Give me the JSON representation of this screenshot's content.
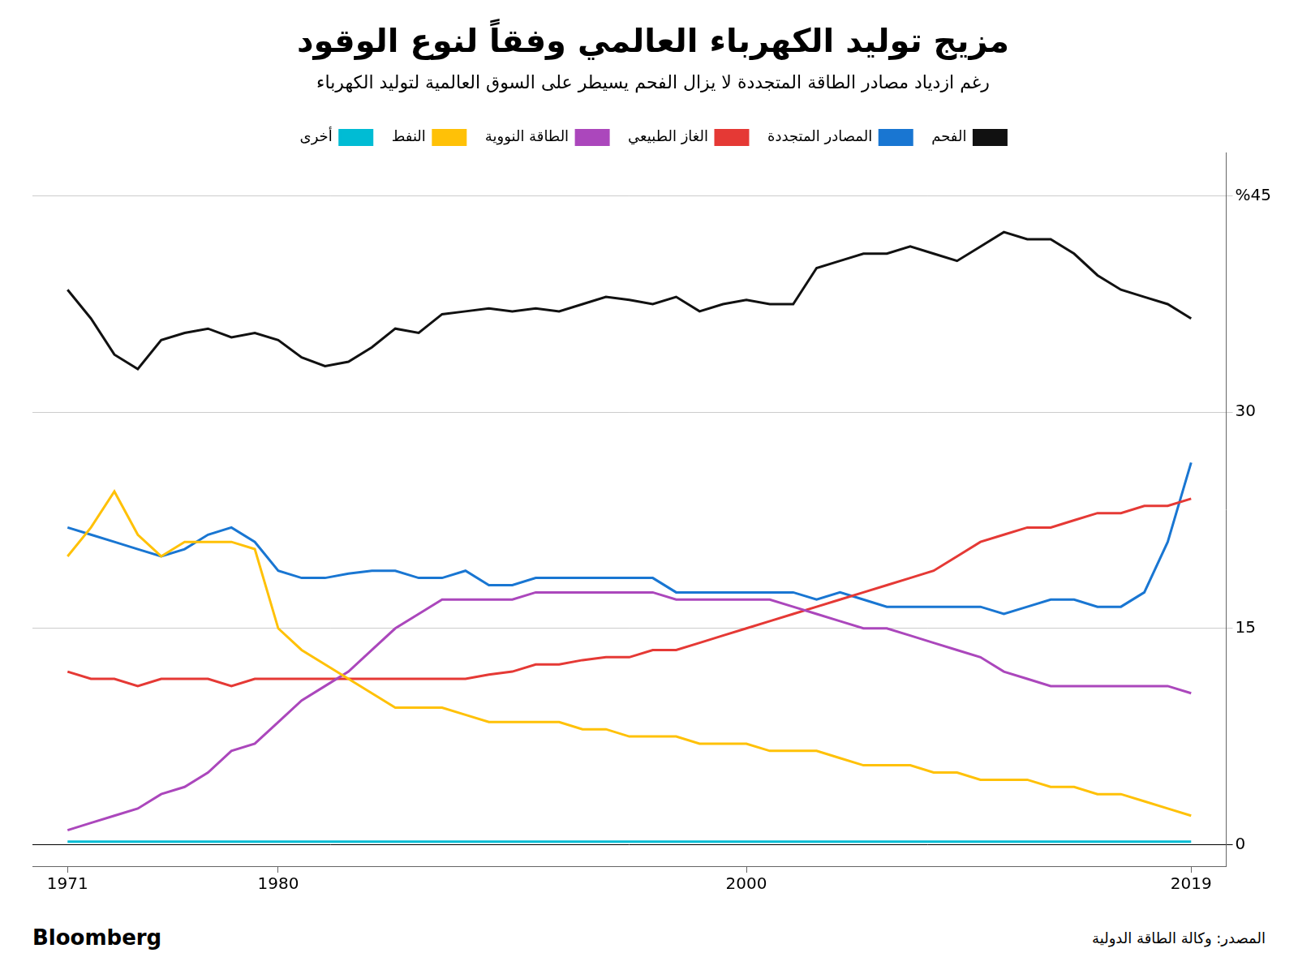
{
  "chart_data": {
    "type": "line",
    "title": "مزيج توليد الكهرباء العالمي وفقاً لنوع الوقود",
    "subtitle": "رغم ازدياد مصادر الطاقة المتجددة لا يزال الفحم يسيطر على السوق العالمية لتوليد الكهرباء",
    "annotations": [
      "Bloomberg",
      "المصدر: وكالة الطاقة الدولية"
    ],
    "x": [
      1971,
      1972,
      1973,
      1974,
      1975,
      1976,
      1977,
      1978,
      1979,
      1980,
      1981,
      1982,
      1983,
      1984,
      1985,
      1986,
      1987,
      1988,
      1989,
      1990,
      1991,
      1992,
      1993,
      1994,
      1995,
      1996,
      1997,
      1998,
      1999,
      2000,
      2001,
      2002,
      2003,
      2004,
      2005,
      2006,
      2007,
      2008,
      2009,
      2010,
      2011,
      2012,
      2013,
      2014,
      2015,
      2016,
      2017,
      2018,
      2019
    ],
    "series": [
      {
        "name": "أخرى",
        "color": "#00BCD4",
        "values": [
          0.2,
          0.2,
          0.2,
          0.2,
          0.2,
          0.2,
          0.2,
          0.2,
          0.2,
          0.2,
          0.2,
          0.2,
          0.2,
          0.2,
          0.2,
          0.2,
          0.2,
          0.2,
          0.2,
          0.2,
          0.2,
          0.2,
          0.2,
          0.2,
          0.2,
          0.2,
          0.2,
          0.2,
          0.2,
          0.2,
          0.2,
          0.2,
          0.2,
          0.2,
          0.2,
          0.2,
          0.2,
          0.2,
          0.2,
          0.2,
          0.2,
          0.2,
          0.2,
          0.2,
          0.2,
          0.2,
          0.2,
          0.2,
          0.2
        ]
      },
      {
        "name": "النفط",
        "color": "#FFC107",
        "values": [
          20.0,
          22.0,
          24.5,
          21.5,
          20.0,
          21.0,
          21.0,
          21.0,
          20.5,
          15.0,
          13.5,
          12.5,
          11.5,
          10.5,
          9.5,
          9.5,
          9.5,
          9.0,
          8.5,
          8.5,
          8.5,
          8.5,
          8.0,
          8.0,
          7.5,
          7.5,
          7.5,
          7.0,
          7.0,
          7.0,
          6.5,
          6.5,
          6.5,
          6.0,
          5.5,
          5.5,
          5.5,
          5.0,
          5.0,
          4.5,
          4.5,
          4.5,
          4.0,
          4.0,
          3.5,
          3.5,
          3.0,
          2.5,
          2.0
        ]
      },
      {
        "name": "الطاقة النووية",
        "color": "#AB47BC",
        "values": [
          1.0,
          1.5,
          2.0,
          2.5,
          3.5,
          4.0,
          5.0,
          6.5,
          7.0,
          8.5,
          10.0,
          11.0,
          12.0,
          13.5,
          15.0,
          16.0,
          17.0,
          17.0,
          17.0,
          17.0,
          17.5,
          17.5,
          17.5,
          17.5,
          17.5,
          17.5,
          17.0,
          17.0,
          17.0,
          17.0,
          17.0,
          16.5,
          16.0,
          15.5,
          15.0,
          15.0,
          14.5,
          14.0,
          13.5,
          13.0,
          12.0,
          11.5,
          11.0,
          11.0,
          11.0,
          11.0,
          11.0,
          11.0,
          10.5
        ]
      },
      {
        "name": "الغاز الطبيعي",
        "color": "#E53935",
        "values": [
          12.0,
          11.5,
          11.5,
          11.0,
          11.5,
          11.5,
          11.5,
          11.0,
          11.5,
          11.5,
          11.5,
          11.5,
          11.5,
          11.5,
          11.5,
          11.5,
          11.5,
          11.5,
          11.8,
          12.0,
          12.5,
          12.5,
          12.8,
          13.0,
          13.0,
          13.5,
          13.5,
          14.0,
          14.5,
          15.0,
          15.5,
          16.0,
          16.5,
          17.0,
          17.5,
          18.0,
          18.5,
          19.0,
          20.0,
          21.0,
          21.5,
          22.0,
          22.0,
          22.5,
          23.0,
          23.0,
          23.5,
          23.5,
          24.0
        ]
      },
      {
        "name": "المصادر المتجددة",
        "color": "#1976D2",
        "values": [
          22.0,
          21.5,
          21.0,
          20.5,
          20.0,
          20.5,
          21.5,
          22.0,
          21.0,
          19.0,
          18.5,
          18.5,
          18.8,
          19.0,
          19.0,
          18.5,
          18.5,
          19.0,
          18.0,
          18.0,
          18.5,
          18.5,
          18.5,
          18.5,
          18.5,
          18.5,
          17.5,
          17.5,
          17.5,
          17.5,
          17.5,
          17.5,
          17.0,
          17.5,
          17.0,
          16.5,
          16.5,
          16.5,
          16.5,
          16.5,
          16.0,
          16.5,
          17.0,
          17.0,
          16.5,
          16.5,
          17.5,
          21.0,
          26.5
        ]
      },
      {
        "name": "الفحم",
        "color": "#111111",
        "values": [
          38.5,
          36.5,
          34.0,
          33.0,
          35.0,
          35.5,
          35.8,
          35.2,
          35.5,
          35.0,
          33.8,
          33.2,
          33.5,
          34.5,
          35.8,
          35.5,
          36.8,
          37.0,
          37.2,
          37.0,
          37.2,
          37.0,
          37.5,
          38.0,
          37.8,
          37.5,
          38.0,
          37.0,
          37.5,
          37.8,
          37.5,
          37.5,
          40.0,
          40.5,
          41.0,
          41.0,
          41.5,
          41.0,
          40.5,
          41.5,
          42.5,
          42.0,
          42.0,
          41.0,
          39.5,
          38.5,
          38.0,
          37.5,
          36.5
        ]
      }
    ],
    "xlim": [
      1969.5,
      2020.5
    ],
    "xticks": [
      1971,
      1980,
      2000,
      2019
    ],
    "ylim": [
      -1.5,
      48
    ],
    "yticks": [
      0,
      15,
      30,
      {
        "value": 45,
        "label": "%45"
      }
    ],
    "grid": true
  }
}
